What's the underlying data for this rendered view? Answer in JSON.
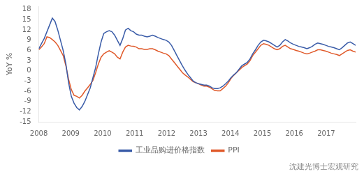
{
  "chart_data": {
    "type": "line",
    "y_label": "YoY %",
    "annotations": [
      "沈建光博士宏观研究"
    ],
    "x": [
      2008,
      2008.084786,
      2008.169573,
      2008.254359,
      2008.339145,
      2008.423932,
      2008.508718,
      2008.593504,
      2008.678291,
      2008.763077,
      2008.847863,
      2008.93265,
      2009.017436,
      2009.102222,
      2009.187009,
      2009.271795,
      2009.356581,
      2009.441368,
      2009.526154,
      2009.61094,
      2009.695726,
      2009.780513,
      2009.865299,
      2009.950085,
      2010.034872,
      2010.119658,
      2010.204444,
      2010.289231,
      2010.374017,
      2010.458803,
      2010.54359,
      2010.628376,
      2010.713162,
      2010.797949,
      2010.882735,
      2010.967521,
      2011.052308,
      2011.137094,
      2011.22188,
      2011.306667,
      2011.391453,
      2011.476239,
      2011.561026,
      2011.645812,
      2011.730598,
      2011.815385,
      2011.900171,
      2011.984957,
      2012.069744,
      2012.15453,
      2012.239316,
      2012.324103,
      2012.408889,
      2012.493675,
      2012.578462,
      2012.663248,
      2012.748034,
      2012.832821,
      2012.917607,
      2013.002393,
      2013.087179,
      2013.171966,
      2013.256752,
      2013.341538,
      2013.426325,
      2013.511111,
      2013.595897,
      2013.680684,
      2013.76547,
      2013.850256,
      2013.935043,
      2014.019829,
      2014.104615,
      2014.189402,
      2014.274188,
      2014.358974,
      2014.443761,
      2014.528547,
      2014.613333,
      2014.69812,
      2014.782906,
      2014.867692,
      2014.952479,
      2015.037265,
      2015.122051,
      2015.206838,
      2015.291624,
      2015.37641,
      2015.461197,
      2015.545983,
      2015.630769,
      2015.715556,
      2015.800342,
      2015.885128,
      2015.969915,
      2016.054701,
      2016.139487,
      2016.224274,
      2016.30906,
      2016.393846,
      2016.478632,
      2016.563419,
      2016.648205,
      2016.732991,
      2016.817778,
      2016.902564,
      2016.98735,
      2017.072137,
      2017.156923,
      2017.241709,
      2017.326496,
      2017.411282,
      2017.496068,
      2017.580855,
      2017.665641,
      2017.750427,
      2017.835214,
      2017.92
    ],
    "series": [
      {
        "name": "工业品购进价格指数",
        "color": "#3a5ca8",
        "values": [
          6.5,
          8.0,
          9.5,
          11.5,
          13.5,
          15.5,
          14.5,
          12.0,
          9.0,
          6.0,
          2.0,
          -3.5,
          -7.5,
          -9.5,
          -10.8,
          -11.5,
          -10.5,
          -9.0,
          -7.0,
          -5.0,
          -2.0,
          1.0,
          5.0,
          8.5,
          11.0,
          11.5,
          11.8,
          11.5,
          10.5,
          9.0,
          7.5,
          9.5,
          12.0,
          12.5,
          11.8,
          11.5,
          10.8,
          10.5,
          10.5,
          10.2,
          10.0,
          10.2,
          10.5,
          10.2,
          9.8,
          9.5,
          9.2,
          9.0,
          8.5,
          7.5,
          6.0,
          4.5,
          3.0,
          1.5,
          0.2,
          -1.0,
          -2.0,
          -3.0,
          -3.5,
          -3.8,
          -4.0,
          -4.2,
          -4.2,
          -4.5,
          -5.0,
          -5.2,
          -5.2,
          -5.0,
          -4.5,
          -3.8,
          -3.0,
          -2.0,
          -1.2,
          -0.5,
          0.5,
          1.5,
          2.0,
          2.5,
          3.5,
          5.0,
          6.2,
          7.5,
          8.5,
          9.0,
          8.8,
          8.5,
          8.0,
          7.5,
          7.0,
          7.5,
          8.5,
          9.2,
          8.8,
          8.2,
          7.8,
          7.5,
          7.2,
          7.0,
          6.8,
          6.5,
          6.8,
          7.2,
          7.8,
          8.2,
          8.0,
          7.8,
          7.5,
          7.2,
          7.0,
          6.8,
          6.5,
          6.2,
          6.8,
          7.5,
          8.2,
          8.5,
          8.0,
          7.5
        ]
      },
      {
        "name": "PPI",
        "color": "#e05a2b",
        "values": [
          6.2,
          7.0,
          8.0,
          10.0,
          9.8,
          9.2,
          8.5,
          7.5,
          6.0,
          4.5,
          1.5,
          -2.5,
          -5.5,
          -7.2,
          -7.5,
          -8.0,
          -7.2,
          -6.0,
          -5.0,
          -4.0,
          -2.8,
          -0.5,
          2.0,
          4.0,
          5.0,
          5.5,
          5.9,
          5.5,
          5.0,
          4.0,
          3.5,
          5.5,
          7.0,
          7.5,
          7.3,
          7.2,
          7.0,
          6.5,
          6.5,
          6.3,
          6.3,
          6.5,
          6.5,
          6.2,
          5.8,
          5.5,
          5.2,
          5.0,
          4.5,
          3.5,
          2.5,
          1.5,
          0.5,
          -0.5,
          -1.2,
          -1.8,
          -2.5,
          -3.2,
          -3.5,
          -3.8,
          -4.2,
          -4.5,
          -4.5,
          -4.8,
          -5.3,
          -5.8,
          -5.9,
          -5.9,
          -5.2,
          -4.5,
          -3.5,
          -2.2,
          -1.3,
          -0.5,
          0.2,
          1.0,
          1.5,
          2.0,
          3.0,
          4.5,
          5.5,
          6.5,
          7.5,
          8.0,
          7.8,
          7.5,
          7.0,
          6.5,
          6.2,
          6.5,
          7.2,
          7.5,
          7.0,
          6.5,
          6.3,
          6.0,
          5.8,
          5.5,
          5.2,
          5.0,
          5.2,
          5.5,
          5.8,
          6.2,
          6.2,
          6.0,
          5.8,
          5.5,
          5.2,
          5.0,
          4.8,
          4.5,
          5.0,
          5.5,
          6.0,
          6.2,
          5.8,
          5.5
        ]
      }
    ],
    "xlim": [
      2008.0,
      2017.92
    ],
    "xticks": [
      2008,
      2009,
      2010,
      2011,
      2012,
      2013,
      2014,
      2015,
      2016,
      2017
    ],
    "ylim": [
      -15,
      19
    ],
    "yticks": [
      -15,
      -12,
      -9,
      -6,
      -3,
      0,
      3,
      6,
      9,
      12,
      15,
      18
    ],
    "grid": false,
    "legend": "bottom"
  }
}
